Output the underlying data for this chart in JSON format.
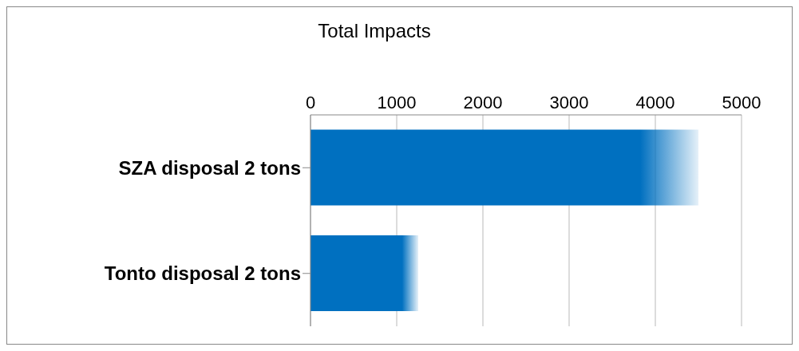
{
  "chart_data": {
    "type": "bar",
    "orientation": "horizontal",
    "title": "Total Impacts",
    "categories": [
      "SZA disposal 2 tons",
      "Tonto disposal 2 tons"
    ],
    "values": [
      4500,
      1250
    ],
    "color": "#0070c0",
    "xlim": [
      0,
      5000
    ],
    "xticks": [
      0,
      1000,
      2000,
      3000,
      4000,
      5000
    ],
    "grid": "x"
  }
}
